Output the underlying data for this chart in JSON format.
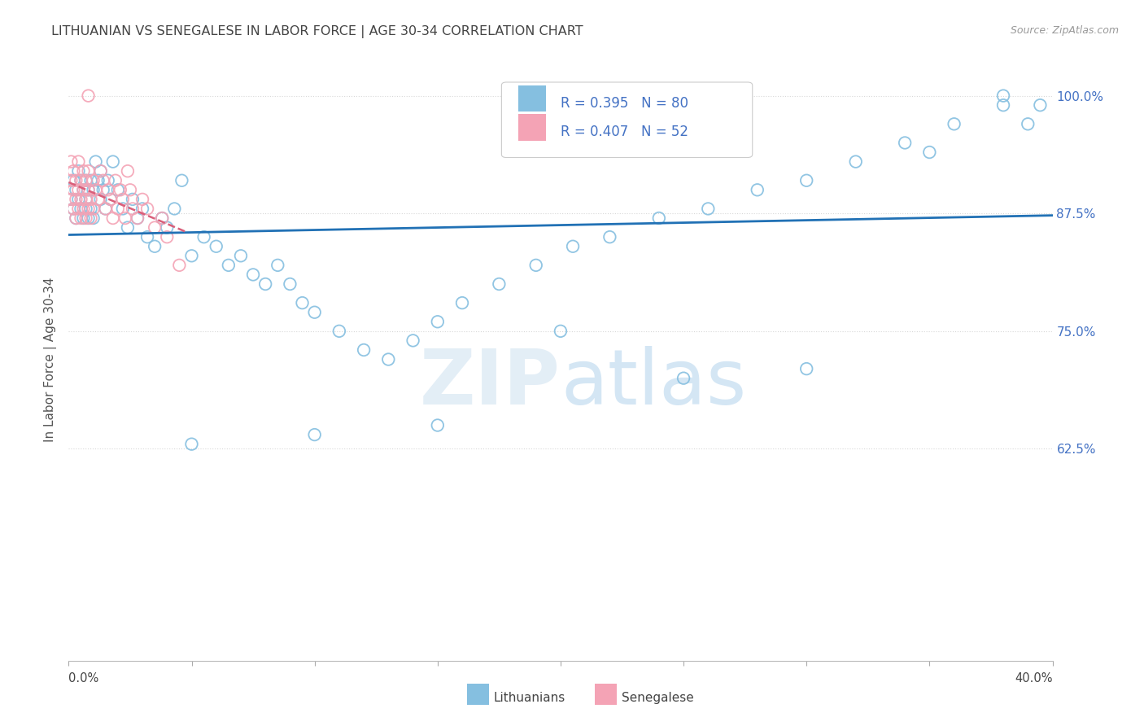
{
  "title": "LITHUANIAN VS SENEGALESE IN LABOR FORCE | AGE 30-34 CORRELATION CHART",
  "source": "Source: ZipAtlas.com",
  "ylabel": "In Labor Force | Age 30-34",
  "ytick_vals": [
    0.625,
    0.75,
    0.875,
    1.0
  ],
  "ytick_labels": [
    "62.5%",
    "75.0%",
    "87.5%",
    "100.0%"
  ],
  "xlim": [
    0.0,
    0.4
  ],
  "ylim": [
    0.4,
    1.04
  ],
  "watermark": "ZIPatlas",
  "legend_blue_r": "R = 0.395",
  "legend_blue_n": "N = 80",
  "legend_pink_r": "R = 0.407",
  "legend_pink_n": "N = 52",
  "legend_label_blue": "Lithuanians",
  "legend_label_pink": "Senegalese",
  "blue_scatter_color": "#85bfe0",
  "blue_line_color": "#2171b5",
  "pink_scatter_color": "#f4a3b5",
  "pink_line_color": "#d95f7a",
  "grid_color": "#d8d8d8",
  "bg_color": "#ffffff",
  "title_color": "#444444",
  "right_tick_color": "#4472c4",
  "blue_x": [
    0.001,
    0.002,
    0.002,
    0.003,
    0.003,
    0.004,
    0.004,
    0.005,
    0.005,
    0.006,
    0.006,
    0.007,
    0.007,
    0.007,
    0.008,
    0.008,
    0.009,
    0.009,
    0.01,
    0.01,
    0.011,
    0.012,
    0.013,
    0.013,
    0.014,
    0.015,
    0.016,
    0.017,
    0.018,
    0.02,
    0.022,
    0.024,
    0.026,
    0.028,
    0.03,
    0.032,
    0.035,
    0.038,
    0.04,
    0.043,
    0.046,
    0.05,
    0.055,
    0.06,
    0.065,
    0.07,
    0.075,
    0.08,
    0.085,
    0.09,
    0.095,
    0.1,
    0.11,
    0.12,
    0.13,
    0.14,
    0.15,
    0.16,
    0.175,
    0.19,
    0.205,
    0.22,
    0.24,
    0.26,
    0.28,
    0.3,
    0.32,
    0.34,
    0.36,
    0.38,
    0.05,
    0.1,
    0.15,
    0.2,
    0.25,
    0.3,
    0.35,
    0.38,
    0.39,
    0.395
  ],
  "blue_y": [
    0.89,
    0.88,
    0.91,
    0.9,
    0.87,
    0.92,
    0.89,
    0.88,
    0.91,
    0.9,
    0.87,
    0.89,
    0.88,
    0.91,
    0.9,
    0.87,
    0.88,
    0.91,
    0.9,
    0.87,
    0.93,
    0.91,
    0.89,
    0.92,
    0.9,
    0.88,
    0.91,
    0.89,
    0.93,
    0.9,
    0.88,
    0.86,
    0.89,
    0.87,
    0.88,
    0.85,
    0.84,
    0.87,
    0.86,
    0.88,
    0.91,
    0.83,
    0.85,
    0.84,
    0.82,
    0.83,
    0.81,
    0.8,
    0.82,
    0.8,
    0.78,
    0.77,
    0.75,
    0.73,
    0.72,
    0.74,
    0.76,
    0.78,
    0.8,
    0.82,
    0.84,
    0.85,
    0.87,
    0.88,
    0.9,
    0.91,
    0.93,
    0.95,
    0.97,
    0.99,
    0.63,
    0.64,
    0.65,
    0.75,
    0.7,
    0.71,
    0.94,
    1.0,
    0.97,
    0.99
  ],
  "pink_x": [
    0.001,
    0.001,
    0.001,
    0.002,
    0.002,
    0.002,
    0.003,
    0.003,
    0.003,
    0.004,
    0.004,
    0.004,
    0.005,
    0.005,
    0.005,
    0.006,
    0.006,
    0.006,
    0.007,
    0.007,
    0.007,
    0.008,
    0.008,
    0.008,
    0.009,
    0.009,
    0.01,
    0.01,
    0.011,
    0.012,
    0.013,
    0.014,
    0.015,
    0.016,
    0.017,
    0.018,
    0.019,
    0.02,
    0.021,
    0.022,
    0.023,
    0.024,
    0.025,
    0.026,
    0.028,
    0.03,
    0.032,
    0.035,
    0.038,
    0.04,
    0.008,
    0.045
  ],
  "pink_y": [
    0.89,
    0.91,
    0.93,
    0.88,
    0.9,
    0.92,
    0.87,
    0.89,
    0.91,
    0.88,
    0.9,
    0.93,
    0.87,
    0.89,
    0.91,
    0.88,
    0.9,
    0.92,
    0.87,
    0.89,
    0.91,
    0.88,
    0.9,
    0.92,
    0.87,
    0.89,
    0.91,
    0.88,
    0.9,
    0.89,
    0.92,
    0.91,
    0.88,
    0.9,
    0.89,
    0.87,
    0.91,
    0.88,
    0.9,
    0.89,
    0.87,
    0.92,
    0.9,
    0.88,
    0.87,
    0.89,
    0.88,
    0.86,
    0.87,
    0.85,
    1.0,
    0.82
  ]
}
